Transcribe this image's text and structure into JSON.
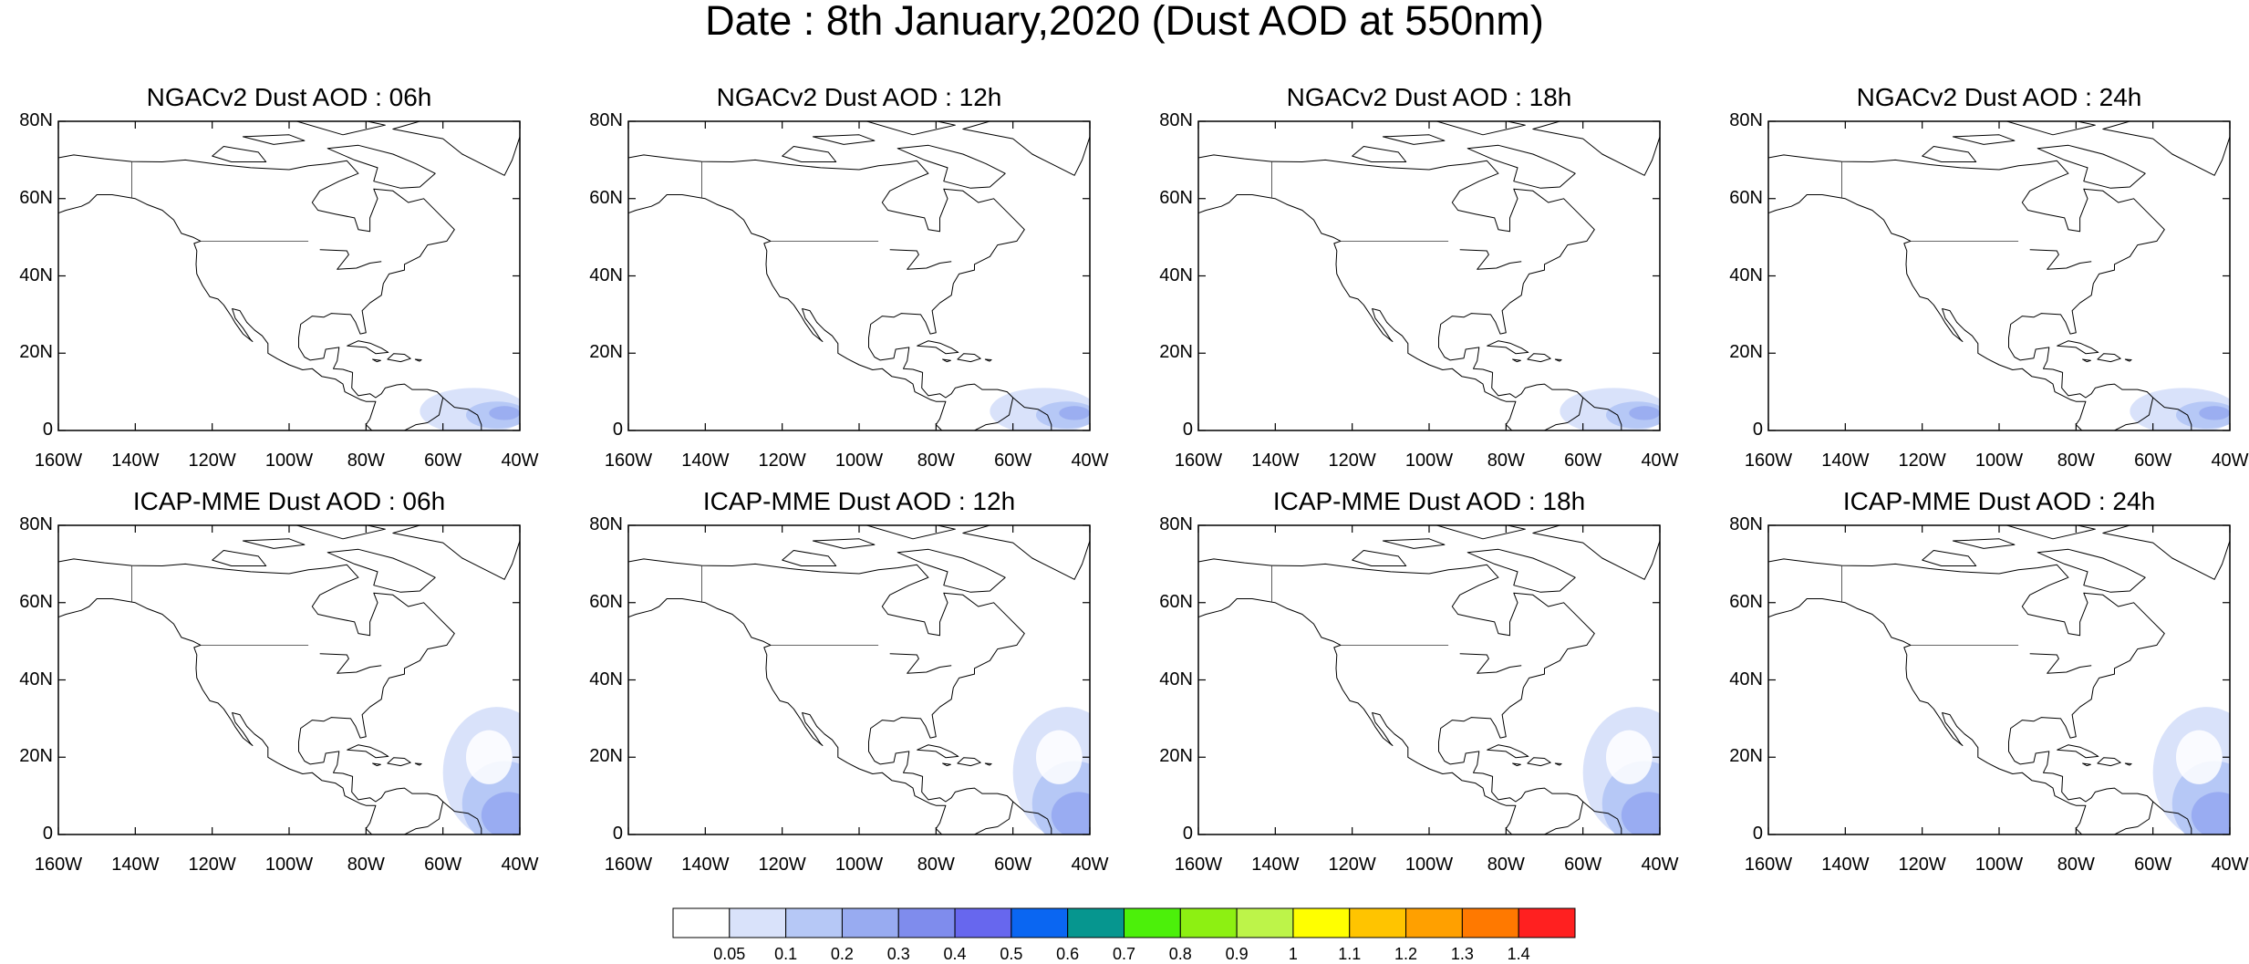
{
  "title": "Date : 8th January,2020 (Dust AOD at 550nm)",
  "map": {
    "x_ticks": [
      "160W",
      "140W",
      "120W",
      "100W",
      "80W",
      "60W",
      "40W"
    ],
    "y_ticks": [
      "80N",
      "60N",
      "40N",
      "20N",
      "0"
    ],
    "lon_range": [
      -160,
      -40
    ],
    "lat_range": [
      0,
      80
    ]
  },
  "panels": [
    {
      "title": "NGACv2 Dust AOD : 06h",
      "model": "NGACv2",
      "forecast_hour": "06h",
      "row": 0,
      "col": 0,
      "extent": "small"
    },
    {
      "title": "NGACv2 Dust AOD : 12h",
      "model": "NGACv2",
      "forecast_hour": "12h",
      "row": 0,
      "col": 1,
      "extent": "small"
    },
    {
      "title": "NGACv2 Dust AOD : 18h",
      "model": "NGACv2",
      "forecast_hour": "18h",
      "row": 0,
      "col": 2,
      "extent": "small"
    },
    {
      "title": "NGACv2 Dust AOD : 24h",
      "model": "NGACv2",
      "forecast_hour": "24h",
      "row": 0,
      "col": 3,
      "extent": "small"
    },
    {
      "title": "ICAP-MME Dust AOD : 06h",
      "model": "ICAP-MME",
      "forecast_hour": "06h",
      "row": 1,
      "col": 0,
      "extent": "large"
    },
    {
      "title": "ICAP-MME Dust AOD : 12h",
      "model": "ICAP-MME",
      "forecast_hour": "12h",
      "row": 1,
      "col": 1,
      "extent": "large"
    },
    {
      "title": "ICAP-MME Dust AOD : 18h",
      "model": "ICAP-MME",
      "forecast_hour": "18h",
      "row": 1,
      "col": 2,
      "extent": "large"
    },
    {
      "title": "ICAP-MME Dust AOD : 24h",
      "model": "ICAP-MME",
      "forecast_hour": "24h",
      "row": 1,
      "col": 3,
      "extent": "large"
    }
  ],
  "colorbar": {
    "labels": [
      "0.05",
      "0.1",
      "0.2",
      "0.3",
      "0.4",
      "0.5",
      "0.6",
      "0.7",
      "0.8",
      "0.9",
      "1",
      "1.1",
      "1.2",
      "1.3",
      "1.4"
    ],
    "colors": [
      "#ffffff",
      "#d9e2fa",
      "#b6c8f6",
      "#98abf1",
      "#7f8ced",
      "#6767ee",
      "#0a66f2",
      "#06968f",
      "#4cf00a",
      "#8df012",
      "#bdf449",
      "#ffff00",
      "#ffc400",
      "#ffa000",
      "#ff7900",
      "#ff2020"
    ]
  }
}
